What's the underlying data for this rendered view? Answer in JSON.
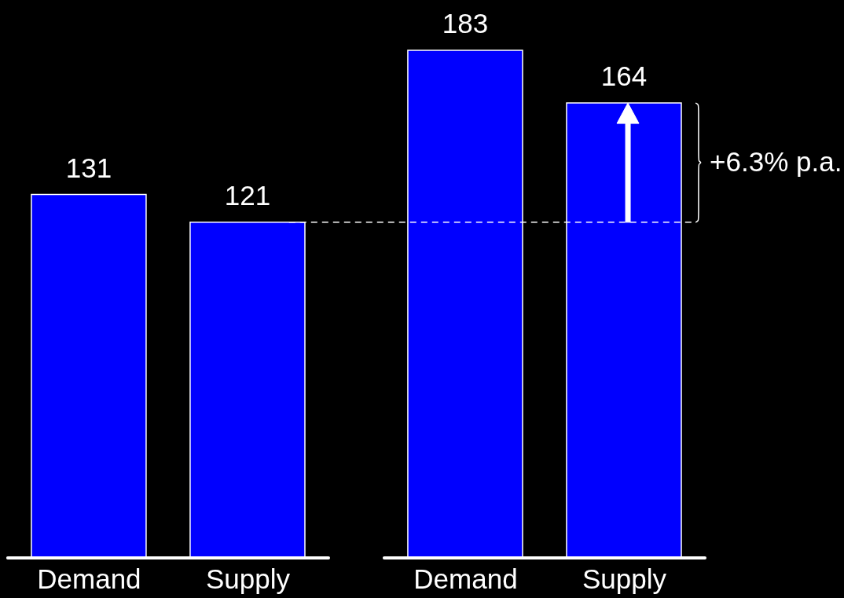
{
  "chart_data": {
    "type": "bar",
    "categories": [
      "Demand",
      "Supply",
      "Demand",
      "Supply"
    ],
    "values": [
      131,
      121,
      183,
      164
    ],
    "color": "#0000ff",
    "data_labels": true,
    "ylim": [
      0,
      200
    ],
    "tick_labels": "x",
    "ref_lines": [
      {
        "axis": "y",
        "value": 121,
        "color": "#ffffff",
        "line_style": "dashed"
      }
    ],
    "annotations": [
      "+6.3% p.a."
    ]
  }
}
